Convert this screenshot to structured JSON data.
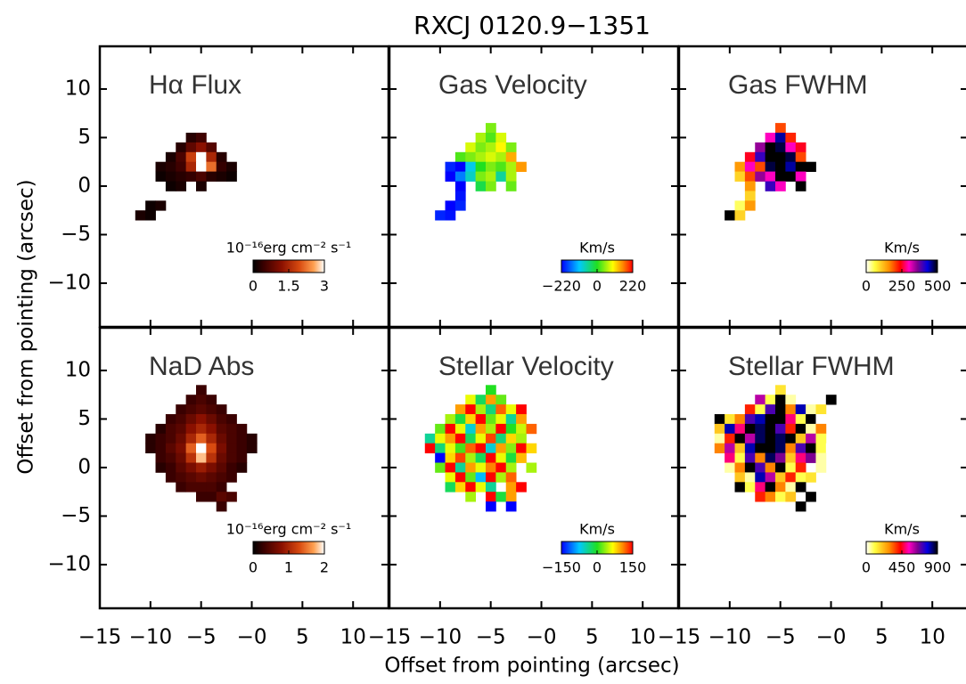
{
  "figure": {
    "title": "RXCJ 0120.9−1351",
    "xlabel": "Offset from pointing (arcsec)",
    "ylabel": "Offset from pointing (arcsec)"
  },
  "chart_data": [
    {
      "type": "heatmap",
      "title": "Hα Flux",
      "colormap": "hot",
      "xlim": [
        -15,
        13.5
      ],
      "ylim": [
        -14.5,
        14.4
      ],
      "yticks": [
        10,
        5,
        0,
        {
          "value": -5,
          "label": "−5"
        },
        {
          "value": -10,
          "label": "−10"
        }
      ],
      "x": [
        -11,
        -10,
        -9,
        -8,
        -7,
        -6,
        -5,
        -4,
        -3,
        -2
      ],
      "y": [
        5,
        4,
        3,
        2,
        1,
        0,
        -1,
        -2,
        -3
      ],
      "z": [
        [
          null,
          null,
          null,
          null,
          null,
          0.3,
          0.5,
          null,
          null,
          null
        ],
        [
          null,
          null,
          null,
          null,
          0.3,
          0.8,
          1.2,
          0.7,
          null,
          null
        ],
        [
          null,
          null,
          null,
          0.2,
          0.6,
          1.8,
          3,
          1.5,
          0.3,
          null
        ],
        [
          null,
          null,
          0.2,
          0.3,
          0.5,
          1.5,
          3,
          2.2,
          0.4,
          0.2
        ],
        [
          null,
          null,
          0.1,
          0.2,
          0.3,
          0.4,
          0.6,
          0.3,
          0.2,
          0.1
        ],
        [
          null,
          null,
          null,
          0.1,
          0.2,
          null,
          0.2,
          null,
          null,
          null
        ],
        [
          null,
          null,
          null,
          null,
          null,
          null,
          null,
          null,
          null,
          null
        ],
        [
          null,
          0.1,
          0.2,
          null,
          null,
          null,
          null,
          null,
          null,
          null
        ],
        [
          0.2,
          0.1,
          null,
          null,
          null,
          null,
          null,
          null,
          null,
          null
        ]
      ],
      "clim": [
        0,
        3
      ],
      "cticks": [
        0,
        1.5,
        3
      ],
      "colorbar_label": "10⁻¹⁶erg cm⁻² s⁻¹"
    },
    {
      "type": "heatmap",
      "title": "Gas Velocity",
      "colormap": "rainbow",
      "xlim": [
        -15,
        13.5
      ],
      "ylim": [
        -14.5,
        14.4
      ],
      "x": [
        -10,
        -9,
        -8,
        -7,
        -6,
        -5,
        -4,
        -3,
        -2
      ],
      "y": [
        6,
        5,
        4,
        3,
        2,
        1,
        0,
        -1,
        -2,
        -3
      ],
      "z": [
        [
          null,
          null,
          null,
          null,
          null,
          40,
          null,
          null,
          null
        ],
        [
          null,
          null,
          null,
          null,
          60,
          20,
          80,
          null,
          null
        ],
        [
          null,
          null,
          null,
          80,
          40,
          60,
          100,
          40,
          null
        ],
        [
          null,
          null,
          20,
          40,
          60,
          80,
          60,
          140,
          null
        ],
        [
          null,
          -200,
          -220,
          -100,
          0,
          40,
          20,
          60,
          150
        ],
        [
          null,
          -220,
          -150,
          -80,
          40,
          60,
          -60,
          60,
          null
        ],
        [
          null,
          null,
          -220,
          null,
          -20,
          40,
          null,
          30,
          null
        ],
        [
          null,
          null,
          -210,
          null,
          null,
          null,
          null,
          null,
          null
        ],
        [
          null,
          -220,
          -200,
          null,
          null,
          null,
          null,
          null,
          null
        ],
        [
          -200,
          -210,
          null,
          null,
          null,
          null,
          null,
          null,
          null
        ]
      ],
      "clim": [
        -220,
        220
      ],
      "cticks": [
        {
          "value": -220,
          "label": "−220"
        },
        0,
        220
      ],
      "colorbar_label": "Km/s"
    },
    {
      "type": "heatmap",
      "title": "Gas FWHM",
      "colormap": "fwhm",
      "xlim": [
        -15,
        13.5
      ],
      "ylim": [
        -14.5,
        14.4
      ],
      "x": [
        -10,
        -9,
        -8,
        -7,
        -6,
        -5,
        -4,
        -3,
        -2
      ],
      "y": [
        6,
        5,
        4,
        3,
        2,
        1,
        0,
        -1,
        -2,
        -3
      ],
      "z": [
        [
          null,
          null,
          null,
          null,
          null,
          200,
          null,
          null,
          null
        ],
        [
          null,
          null,
          null,
          null,
          300,
          450,
          220,
          null,
          null
        ],
        [
          null,
          null,
          null,
          350,
          500,
          480,
          300,
          250,
          null
        ],
        [
          null,
          null,
          250,
          400,
          500,
          520,
          480,
          200,
          null
        ],
        [
          null,
          150,
          300,
          200,
          480,
          500,
          450,
          500,
          520
        ],
        [
          null,
          100,
          200,
          350,
          300,
          500,
          520,
          300,
          null
        ],
        [
          null,
          null,
          150,
          null,
          400,
          300,
          null,
          520,
          null
        ],
        [
          null,
          null,
          100,
          null,
          null,
          null,
          null,
          null,
          null
        ],
        [
          null,
          50,
          150,
          null,
          null,
          null,
          null,
          null,
          null
        ],
        [
          520,
          100,
          null,
          null,
          null,
          null,
          null,
          null,
          null
        ]
      ],
      "clim": [
        0,
        500
      ],
      "cticks": [
        0,
        250,
        500
      ],
      "colorbar_label": "Km/s"
    },
    {
      "type": "heatmap",
      "title": "NaD Abs",
      "colormap": "hot",
      "xlim": [
        -15,
        13.5
      ],
      "ylim": [
        -14.5,
        14.4
      ],
      "xticks": [
        {
          "value": -15,
          "label": "−15"
        },
        {
          "value": -10,
          "label": "−10"
        },
        {
          "value": -5,
          "label": "−5"
        },
        {
          "value": 0,
          "label": "−0"
        },
        5,
        10
      ],
      "yticks": [
        10,
        5,
        0,
        {
          "value": -5,
          "label": "−5"
        },
        {
          "value": -10,
          "label": "−10"
        }
      ],
      "x": [
        -10,
        -9,
        -8,
        -7,
        -6,
        -5,
        -4,
        -3,
        -2,
        -1,
        0
      ],
      "y": [
        8,
        7,
        6,
        5,
        4,
        3,
        2,
        1,
        0,
        -1,
        -2,
        -3,
        -4
      ],
      "z": [
        [
          null,
          null,
          null,
          null,
          null,
          0.3,
          null,
          null,
          null,
          null,
          null
        ],
        [
          null,
          null,
          null,
          null,
          0.3,
          0.4,
          0.3,
          null,
          null,
          null,
          null
        ],
        [
          null,
          null,
          null,
          0.3,
          0.4,
          0.5,
          0.4,
          0.3,
          null,
          null,
          null
        ],
        [
          null,
          null,
          0.3,
          0.4,
          0.6,
          0.8,
          0.6,
          0.4,
          0.3,
          null,
          null
        ],
        [
          null,
          0.2,
          0.4,
          0.5,
          0.8,
          1.0,
          0.8,
          0.5,
          0.4,
          0.3,
          null
        ],
        [
          0.2,
          0.3,
          0.4,
          0.6,
          1.0,
          1.4,
          1.0,
          0.6,
          0.4,
          0.3,
          0.2
        ],
        [
          0.2,
          0.3,
          0.5,
          0.7,
          1.4,
          2.0,
          1.3,
          0.7,
          0.4,
          0.3,
          0.2
        ],
        [
          null,
          0.3,
          0.4,
          0.6,
          1.1,
          1.8,
          1.1,
          0.6,
          0.4,
          0.3,
          null
        ],
        [
          null,
          0.2,
          0.3,
          0.5,
          0.7,
          0.9,
          0.7,
          0.5,
          0.3,
          0.2,
          null
        ],
        [
          null,
          null,
          0.3,
          0.4,
          0.5,
          0.6,
          0.5,
          0.4,
          0.3,
          null,
          null
        ],
        [
          null,
          null,
          null,
          0.3,
          0.4,
          0.4,
          0.4,
          0.3,
          null,
          null,
          null
        ],
        [
          null,
          null,
          null,
          null,
          null,
          0.3,
          0.3,
          0.5,
          0.4,
          null,
          null
        ],
        [
          null,
          null,
          null,
          null,
          null,
          null,
          null,
          0.3,
          null,
          null,
          null
        ]
      ],
      "clim": [
        0,
        2
      ],
      "cticks": [
        0,
        1,
        2
      ],
      "colorbar_label": "10⁻¹⁶erg cm⁻² s⁻¹"
    },
    {
      "type": "heatmap",
      "title": "Stellar Velocity",
      "colormap": "rainbow",
      "xlim": [
        -15,
        13.5
      ],
      "ylim": [
        -14.5,
        14.4
      ],
      "xticks": [
        {
          "value": -15,
          "label": "−15"
        },
        {
          "value": -10,
          "label": "−10"
        },
        {
          "value": -5,
          "label": "−5"
        },
        {
          "value": 0,
          "label": "−0"
        },
        5,
        10
      ],
      "x": [
        -11,
        -10,
        -9,
        -8,
        -7,
        -6,
        -5,
        -4,
        -3,
        -2,
        -1,
        0
      ],
      "y": [
        8,
        7,
        6,
        5,
        4,
        3,
        2,
        1,
        0,
        -1,
        -2,
        -3,
        -4
      ],
      "z": [
        [
          null,
          null,
          null,
          null,
          null,
          null,
          0,
          null,
          null,
          null,
          null,
          null
        ],
        [
          null,
          null,
          null,
          null,
          60,
          -20,
          100,
          20,
          null,
          null,
          null,
          null
        ],
        [
          null,
          null,
          null,
          100,
          150,
          40,
          -30,
          120,
          60,
          150,
          null,
          null
        ],
        [
          null,
          null,
          40,
          -10,
          80,
          150,
          20,
          60,
          -40,
          100,
          null,
          null
        ],
        [
          null,
          20,
          150,
          60,
          -60,
          100,
          40,
          150,
          0,
          50,
          120,
          null
        ],
        [
          -40,
          60,
          100,
          150,
          -20,
          60,
          130,
          -30,
          80,
          40,
          null,
          null
        ],
        [
          150,
          -30,
          60,
          10,
          120,
          150,
          -60,
          100,
          30,
          150,
          80,
          null
        ],
        [
          null,
          -150,
          80,
          130,
          40,
          -20,
          150,
          60,
          -10,
          90,
          null,
          null
        ],
        [
          null,
          20,
          150,
          -40,
          100,
          60,
          110,
          150,
          40,
          null,
          40,
          null
        ],
        [
          null,
          null,
          60,
          150,
          20,
          -80,
          150,
          40,
          120,
          null,
          null,
          null
        ],
        [
          null,
          null,
          -20,
          80,
          150,
          60,
          -40,
          null,
          100,
          150,
          null,
          null
        ],
        [
          null,
          null,
          null,
          null,
          40,
          null,
          150,
          -10,
          100,
          null,
          null,
          null
        ],
        [
          null,
          null,
          null,
          null,
          null,
          null,
          -150,
          null,
          -150,
          null,
          null,
          null
        ]
      ],
      "clim": [
        -150,
        150
      ],
      "cticks": [
        {
          "value": -150,
          "label": "−150"
        },
        0,
        150
      ],
      "colorbar_label": "Km/s"
    },
    {
      "type": "heatmap",
      "title": "Stellar FWHM",
      "colormap": "fwhm",
      "xlim": [
        -15,
        13.5
      ],
      "ylim": [
        -14.5,
        14.4
      ],
      "xticks": [
        {
          "value": -15,
          "label": "−15"
        },
        {
          "value": -10,
          "label": "−10"
        },
        {
          "value": -5,
          "label": "−5"
        },
        {
          "value": 0,
          "label": "−0"
        },
        5,
        10
      ],
      "x": [
        -11,
        -10,
        -9,
        -8,
        -7,
        -6,
        -5,
        -4,
        -3,
        -2,
        -1,
        0
      ],
      "y": [
        8,
        7,
        6,
        5,
        4,
        3,
        2,
        1,
        0,
        -1,
        -2,
        -3,
        -4
      ],
      "z": [
        [
          null,
          null,
          null,
          null,
          null,
          null,
          150,
          null,
          null,
          null,
          null,
          null
        ],
        [
          null,
          null,
          null,
          null,
          600,
          100,
          900,
          50,
          null,
          null,
          null,
          1000
        ],
        [
          null,
          null,
          null,
          400,
          100,
          700,
          950,
          300,
          800,
          50,
          150,
          null
        ],
        [
          950,
          150,
          300,
          700,
          800,
          900,
          1000,
          500,
          100,
          950,
          0,
          null
        ],
        [
          200,
          800,
          500,
          900,
          850,
          900,
          700,
          400,
          900,
          50,
          300,
          null
        ],
        [
          50,
          400,
          900,
          600,
          850,
          900,
          850,
          950,
          200,
          600,
          100,
          null
        ],
        [
          300,
          600,
          200,
          800,
          900,
          900,
          850,
          300,
          700,
          900,
          100,
          0
        ],
        [
          null,
          500,
          100,
          700,
          300,
          850,
          650,
          200,
          500,
          650,
          50,
          null
        ],
        [
          null,
          50,
          300,
          900,
          700,
          300,
          900,
          100,
          400,
          null,
          50,
          null
        ],
        [
          null,
          null,
          200,
          50,
          800,
          600,
          200,
          400,
          100,
          150,
          null,
          null
        ],
        [
          null,
          null,
          1000,
          100,
          500,
          900,
          300,
          50,
          1000,
          null,
          null,
          null
        ],
        [
          null,
          null,
          null,
          null,
          400,
          300,
          100,
          200,
          null,
          1000,
          null,
          null
        ],
        [
          null,
          null,
          null,
          null,
          null,
          null,
          null,
          null,
          1000,
          null,
          null,
          null
        ]
      ],
      "clim": [
        0,
        900
      ],
      "cticks": [
        0,
        450,
        900
      ],
      "colorbar_label": "Km/s"
    }
  ]
}
